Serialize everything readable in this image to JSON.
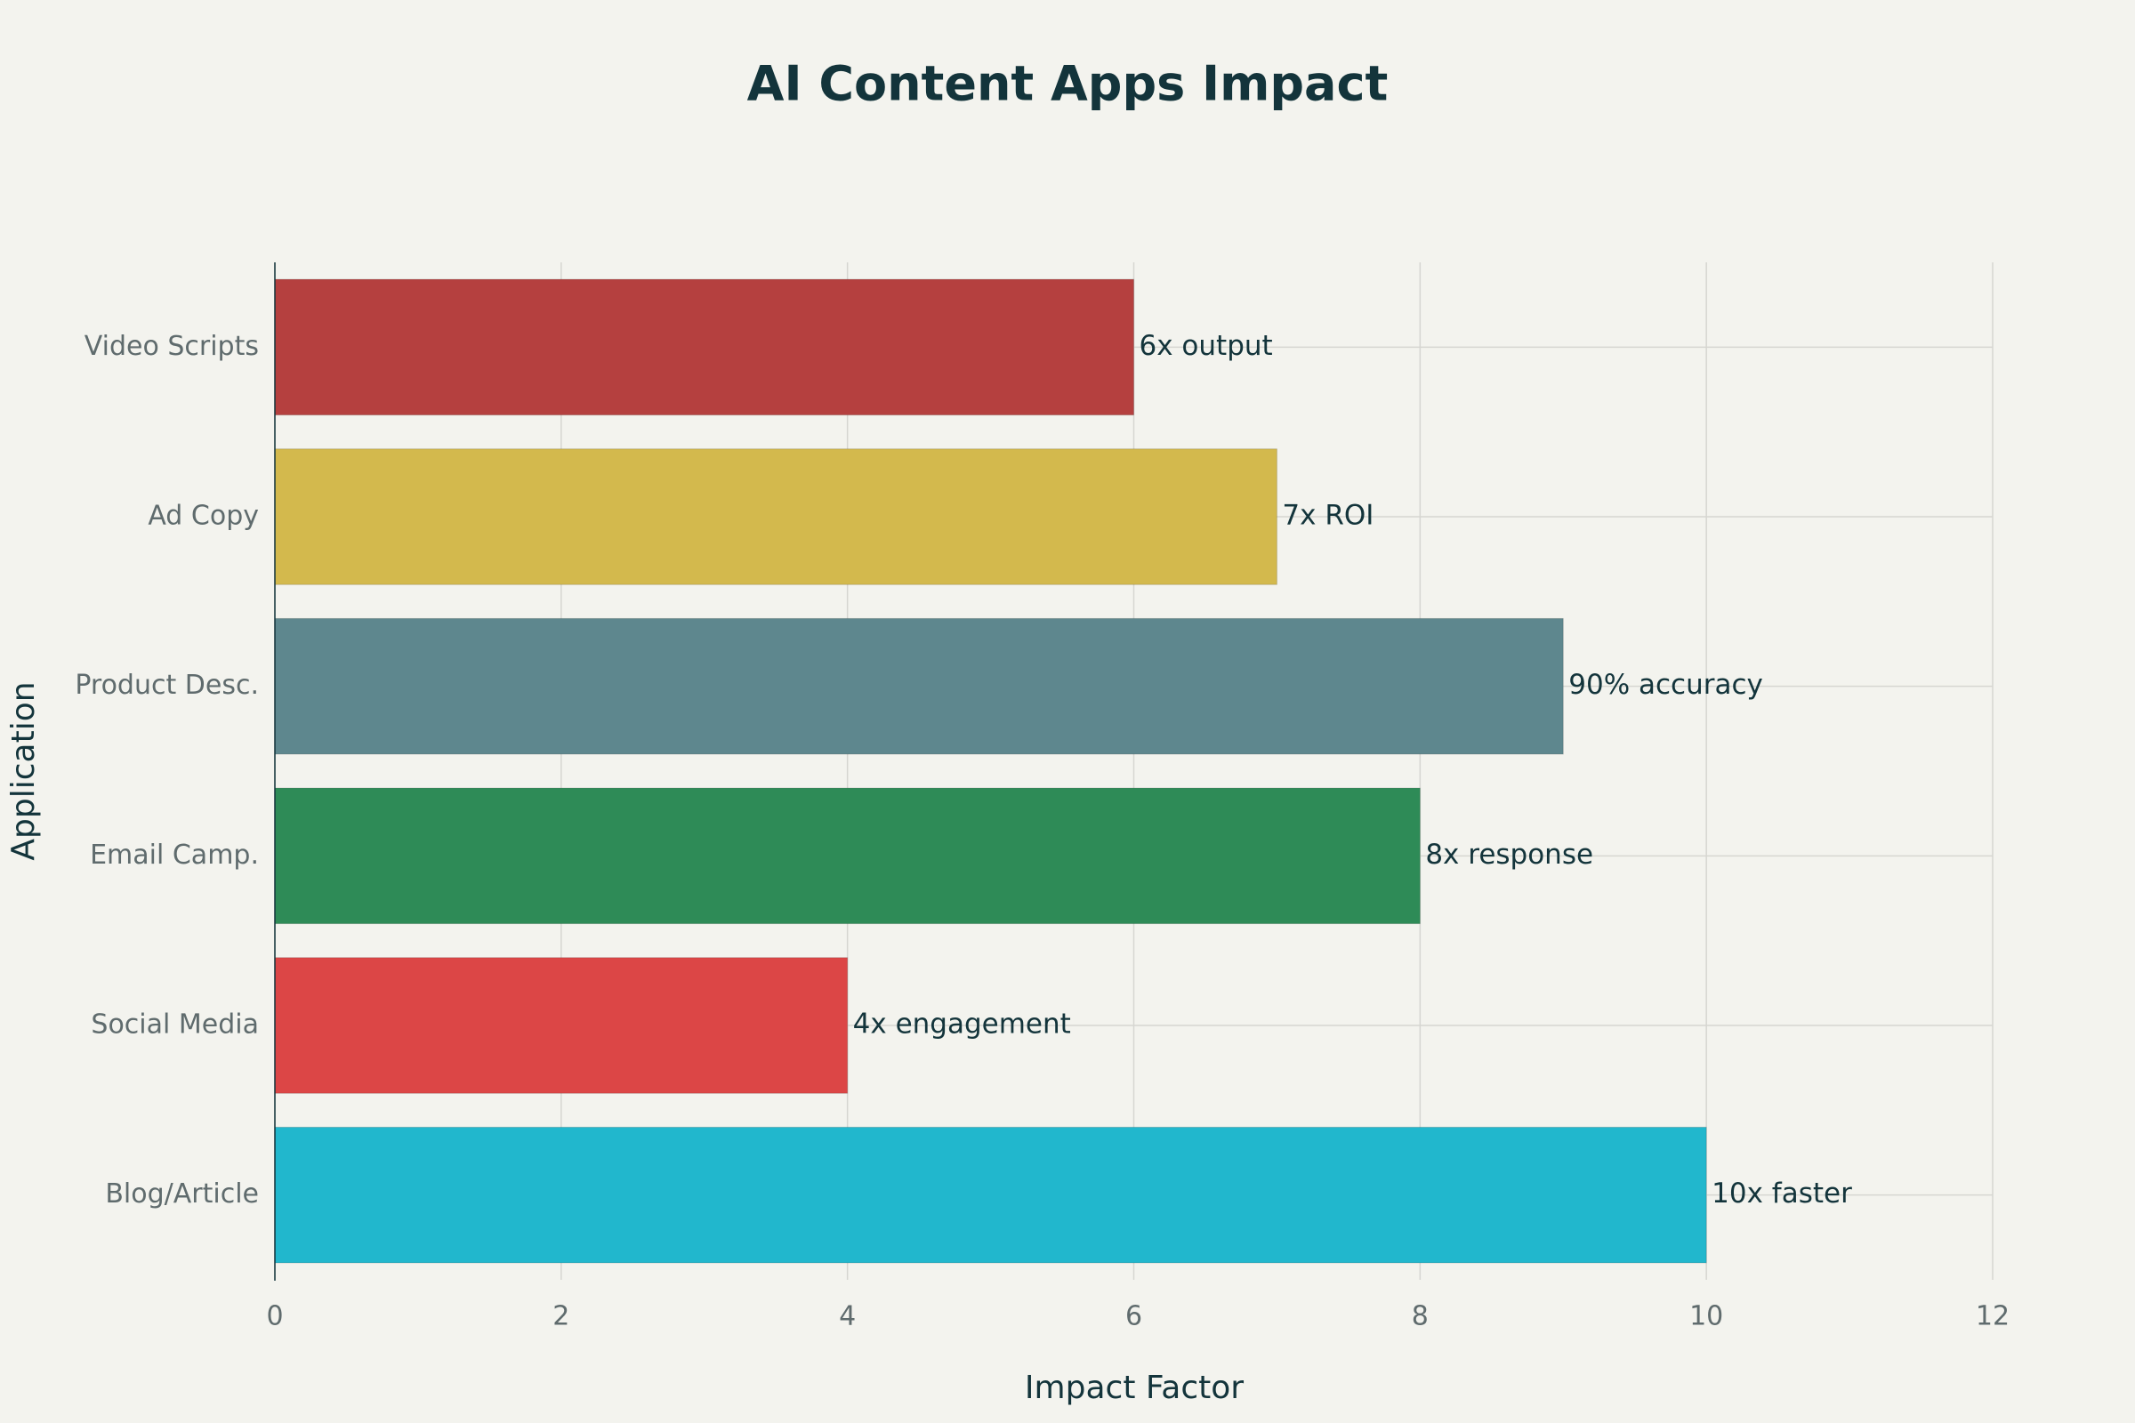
{
  "chart_data": {
    "type": "hbar",
    "title": "AI Content Apps Impact",
    "x_label": "Impact Factor",
    "y_label": "Application",
    "categories": [
      "Blog/Article",
      "Social Media",
      "Email Camp.",
      "Product Desc.",
      "Ad Copy",
      "Video Scripts"
    ],
    "values": [
      10,
      4,
      8,
      9,
      7,
      6
    ],
    "annotations": [
      "10x faster",
      "4x engagement",
      "8x response",
      "90% accuracy",
      "7x ROI",
      "6x output"
    ],
    "colors": [
      "#21b7cd",
      "#dc4646",
      "#2e8b57",
      "#5e878e",
      "#d3b94d",
      "#b5403f"
    ],
    "xlim": [
      0,
      12
    ],
    "xticks": [
      0,
      2,
      4,
      6,
      8,
      10,
      12
    ],
    "grid": true
  }
}
